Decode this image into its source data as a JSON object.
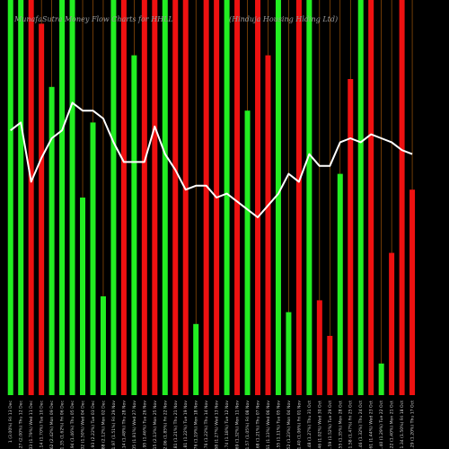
{
  "chart_data": {
    "type": "bar",
    "title": "MunafaSutra Money Flow Charts for HHLL",
    "subtitle": "(Hinduja Housing Hlding Ltd)",
    "up_color": "#22ee22",
    "down_color": "#ee1111",
    "grid_color": "#b8620a",
    "line_color": "#ffffff",
    "ylim": [
      0,
      100
    ],
    "categories": [
      "Fri 13 Dec",
      "Thu 12 Dec",
      "Wed 11 Dec",
      "Tue 10 Dec",
      "Mon 09 Dec",
      "Fri 06 Dec",
      "Thu 05 Dec",
      "Wed 04 Dec",
      "Tue 03 Dec",
      "Mon 02 Dec",
      "Fri 29 Nov",
      "Thu 28 Nov",
      "Wed 27 Nov",
      "Tue 26 Nov",
      "Mon 25 Nov",
      "Fri 22 Nov",
      "Thu 21 Nov",
      "Tue 19 Nov",
      "Mon 18 Nov",
      "Thu 14 Nov",
      "Wed 13 Nov",
      "Tue 12 Nov",
      "Mon 11 Nov",
      "Fri 08 Nov",
      "Thu 07 Nov",
      "Wed 06 Nov",
      "Tue 05 Nov",
      "Mon 04 Nov",
      "Fri 01 Nov",
      "Thu 31 Oct",
      "Wed 30 Oct",
      "Tue 29 Oct",
      "Mon 28 Oct",
      "Fri 25 Oct",
      "Thu 24 Oct",
      "Wed 23 Oct",
      "Tue 22 Oct",
      "Mon 21 Oct",
      "Fri 18 Oct",
      "Thu 17 Oct"
    ],
    "x_tick_labels": [
      "1 (3.00%)",
      "1.27 (2.00%)",
      "1.03 (1.79%)",
      "1.14 (1.70%)",
      "1.62 (2.42%)",
      "1.35 (1.62%)",
      "1.94 (1.46%)",
      "2.02 (1.50%)",
      "1.93 (2.22%)",
      "1.88 (2.12%)",
      "1.97 (1.51%)",
      "2.14 (1.48%)",
      "2.05 (1.91%)",
      "1.95 (1.46%)",
      "2.15 (2.13%)",
      "2.06 (1.85%)",
      "1.81 (1.21%)",
      "1.81 (1.22%)",
      "1.76 (1.19%)",
      "1.76 (1.22%)",
      "1.68 (1.27%)",
      "1.74 (1.18%)",
      "1.69 (1.32%)",
      "1.57 (1.05%)",
      "1.68 (1.21%)",
      "1.61 (1.13%)",
      "1.55 (1.11%)",
      "1.52 (1.23%)",
      "1.40 (1.06%)",
      "1.48 (1.27%)",
      "1.46 (1.02%)",
      "1.59 (1.52%)",
      "1.55 (1.35%)",
      "1.58 (1.47%)",
      "1.46 (1.32%)",
      "1.61 (1.44%)",
      "1.40 (1.29%)",
      "1.22 (1.40%)",
      "1.34 (1.50%)",
      "1.29 (1.20%)"
    ],
    "series": [
      {
        "type": "bar",
        "directions": [
          "up",
          "up",
          "down",
          "down",
          "up",
          "up",
          "up",
          "up",
          "up",
          "up",
          "up",
          "down",
          "up",
          "down",
          "down",
          "up",
          "down",
          "down",
          "up",
          "down",
          "down",
          "up",
          "down",
          "up",
          "down",
          "down",
          "up",
          "up",
          "down",
          "up",
          "down",
          "down",
          "up",
          "down",
          "up",
          "down",
          "up",
          "down",
          "down",
          "down"
        ],
        "values": [
          100,
          100,
          100,
          94,
          78,
          100,
          100,
          50,
          69,
          25,
          100,
          100,
          86,
          100,
          100,
          100,
          100,
          100,
          18,
          100,
          100,
          100,
          100,
          72,
          100,
          86,
          100,
          21,
          100,
          100,
          24,
          15,
          56,
          80,
          100,
          100,
          8,
          36,
          100,
          52
        ]
      },
      {
        "type": "line",
        "values": [
          67,
          69,
          54,
          60,
          65,
          67,
          74,
          72,
          72,
          70,
          64,
          59,
          59,
          59,
          68,
          61,
          57,
          52,
          53,
          53,
          50,
          51,
          49,
          47,
          45,
          48,
          51,
          56,
          54,
          61,
          58,
          58,
          64,
          65,
          64,
          66,
          65,
          64,
          62,
          61
        ]
      }
    ]
  }
}
